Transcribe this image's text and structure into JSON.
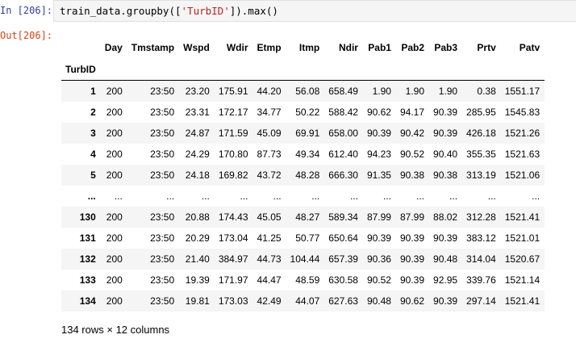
{
  "cell": {
    "in_prompt": "In [206]:",
    "out_prompt": "Out[206]:",
    "code_prefix": "train_data.groupby([",
    "code_string": "'TurbID'",
    "code_suffix": "]).max()"
  },
  "table": {
    "index_name": "TurbID",
    "columns": [
      "Day",
      "Tmstamp",
      "Wspd",
      "Wdir",
      "Etmp",
      "Itmp",
      "Ndir",
      "Pab1",
      "Pab2",
      "Pab3",
      "Prtv",
      "Patv"
    ],
    "rows": [
      {
        "index": "1",
        "cells": [
          "200",
          "23:50",
          "23.20",
          "175.91",
          "44.20",
          "56.08",
          "658.49",
          "1.90",
          "1.90",
          "1.90",
          "0.38",
          "1551.17"
        ]
      },
      {
        "index": "2",
        "cells": [
          "200",
          "23:50",
          "23.31",
          "172.17",
          "34.77",
          "50.22",
          "588.42",
          "90.62",
          "94.17",
          "90.39",
          "285.95",
          "1545.83"
        ]
      },
      {
        "index": "3",
        "cells": [
          "200",
          "23:50",
          "24.87",
          "171.59",
          "45.09",
          "69.91",
          "658.00",
          "90.39",
          "90.42",
          "90.39",
          "426.18",
          "1521.26"
        ]
      },
      {
        "index": "4",
        "cells": [
          "200",
          "23:50",
          "24.29",
          "170.80",
          "87.73",
          "49.34",
          "612.40",
          "94.23",
          "90.52",
          "90.40",
          "355.35",
          "1521.63"
        ]
      },
      {
        "index": "5",
        "cells": [
          "200",
          "23:50",
          "24.18",
          "169.82",
          "43.72",
          "48.28",
          "666.30",
          "91.35",
          "90.38",
          "90.38",
          "313.19",
          "1521.06"
        ]
      },
      {
        "index": "...",
        "cells": [
          "...",
          "...",
          "...",
          "...",
          "...",
          "...",
          "...",
          "...",
          "...",
          "...",
          "...",
          "..."
        ]
      },
      {
        "index": "130",
        "cells": [
          "200",
          "23:50",
          "20.88",
          "174.43",
          "45.05",
          "48.27",
          "589.34",
          "87.99",
          "87.99",
          "88.02",
          "312.28",
          "1521.41"
        ]
      },
      {
        "index": "131",
        "cells": [
          "200",
          "23:50",
          "20.29",
          "173.04",
          "41.25",
          "50.77",
          "650.64",
          "90.39",
          "90.39",
          "90.39",
          "383.12",
          "1521.01"
        ]
      },
      {
        "index": "132",
        "cells": [
          "200",
          "23:50",
          "21.40",
          "384.97",
          "44.73",
          "104.44",
          "657.39",
          "90.36",
          "90.39",
          "90.48",
          "314.04",
          "1520.67"
        ]
      },
      {
        "index": "133",
        "cells": [
          "200",
          "23:50",
          "19.39",
          "171.97",
          "44.47",
          "48.59",
          "630.58",
          "90.52",
          "90.39",
          "92.95",
          "339.76",
          "1521.14"
        ]
      },
      {
        "index": "134",
        "cells": [
          "200",
          "23:50",
          "19.81",
          "173.03",
          "42.49",
          "44.07",
          "627.63",
          "90.48",
          "90.62",
          "90.39",
          "297.14",
          "1521.41"
        ]
      }
    ]
  },
  "footer": "134 rows × 12 columns",
  "colors": {
    "in_prompt": "#303f9f",
    "out_prompt": "#d84315",
    "string_literal": "#ba2121",
    "striped_row": "#f5f5f5",
    "code_background": "#f5f5f5"
  }
}
